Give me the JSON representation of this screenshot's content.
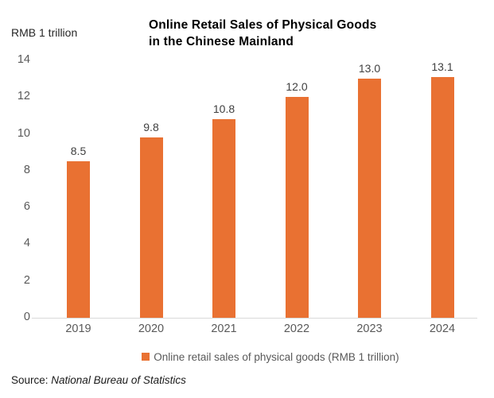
{
  "header": {
    "axis_unit_label": "RMB 1 trillion",
    "title_line1": "Online Retail Sales of Physical Goods",
    "title_line2": "in the Chinese Mainland"
  },
  "chart_data": {
    "type": "bar",
    "title": "Online Retail Sales of Physical Goods in the Chinese Mainland",
    "unit_label": "RMB 1 trillion",
    "categories": [
      "2019",
      "2020",
      "2021",
      "2022",
      "2023",
      "2024"
    ],
    "values": [
      8.5,
      9.8,
      10.8,
      12.0,
      13.0,
      13.1
    ],
    "value_labels": [
      "8.5",
      "9.8",
      "10.8",
      "12.0",
      "13.0",
      "13.1"
    ],
    "ylim": [
      0,
      14
    ],
    "y_ticks": [
      14,
      12,
      10,
      8,
      6,
      4,
      2,
      0
    ],
    "grid": false,
    "bar_color": "#E97132",
    "legend_position": "bottom"
  },
  "legend": {
    "label": "Online retail sales of physical goods (RMB 1 trillion)",
    "swatch_color": "#E97132"
  },
  "footer": {
    "source_prefix": "Source: ",
    "source_name": "National Bureau of Statistics"
  },
  "colors": {
    "bar": "#E97132",
    "axis_line": "#d9d9d9",
    "tick_text": "#595959",
    "data_label_text": "#404040",
    "title_text": "#000000",
    "background": "#ffffff"
  }
}
